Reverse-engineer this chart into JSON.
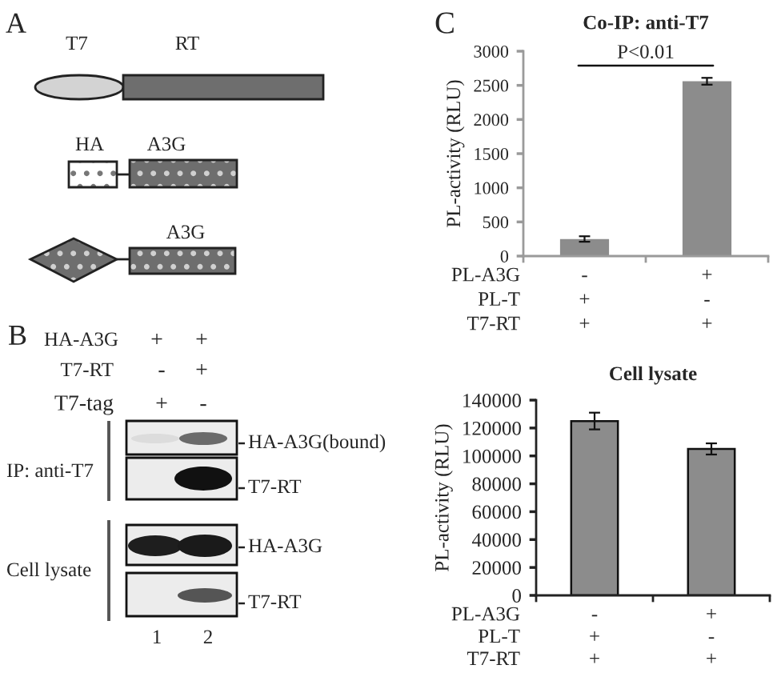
{
  "chart_data": [
    {
      "type": "other",
      "title": "A",
      "annotations": [
        "T7",
        "RT",
        "HA",
        "A3G",
        "A3G"
      ]
    },
    {
      "type": "other",
      "title": "B",
      "annotations": [
        "HA-A3G",
        "+",
        "+",
        "T7-RT",
        "-",
        "+",
        "T7-tag",
        "+",
        "-",
        "IP: anti-T7",
        "Cell lysate",
        "HA-A3G(bound)",
        "T7-RT",
        "HA-A3G",
        "T7-RT",
        "1",
        "2"
      ]
    },
    {
      "type": "bar",
      "title": "Co-IP: anti-T7",
      "ylabel": "PL-activity (RLU)",
      "xlabel": "PL-A3G\nPL-T\nT7-RT",
      "categories": [
        "-\n+\n+",
        "+\n-\n+"
      ],
      "values": [
        250,
        2560
      ],
      "errors": [
        40,
        50
      ],
      "color": "#8c8c8c",
      "ylim": [
        0,
        3000
      ],
      "yticks": [
        0,
        500,
        1000,
        1500,
        2000,
        2500,
        3000
      ],
      "annotations": [
        "C",
        "P<0.01"
      ]
    },
    {
      "type": "bar",
      "title": "Cell lysate",
      "ylabel": "PL-activity (RLU)",
      "xlabel": "PL-A3G\nPL-T\nT7-RT",
      "categories": [
        "-\n+\n+",
        "+\n-\n+"
      ],
      "values": [
        125000,
        105000
      ],
      "errors": [
        6000,
        4000
      ],
      "color": "#8c8c8c",
      "ylim": [
        0,
        140000
      ],
      "yticks": [
        0,
        20000,
        40000,
        60000,
        80000,
        100000,
        120000,
        140000
      ]
    }
  ]
}
